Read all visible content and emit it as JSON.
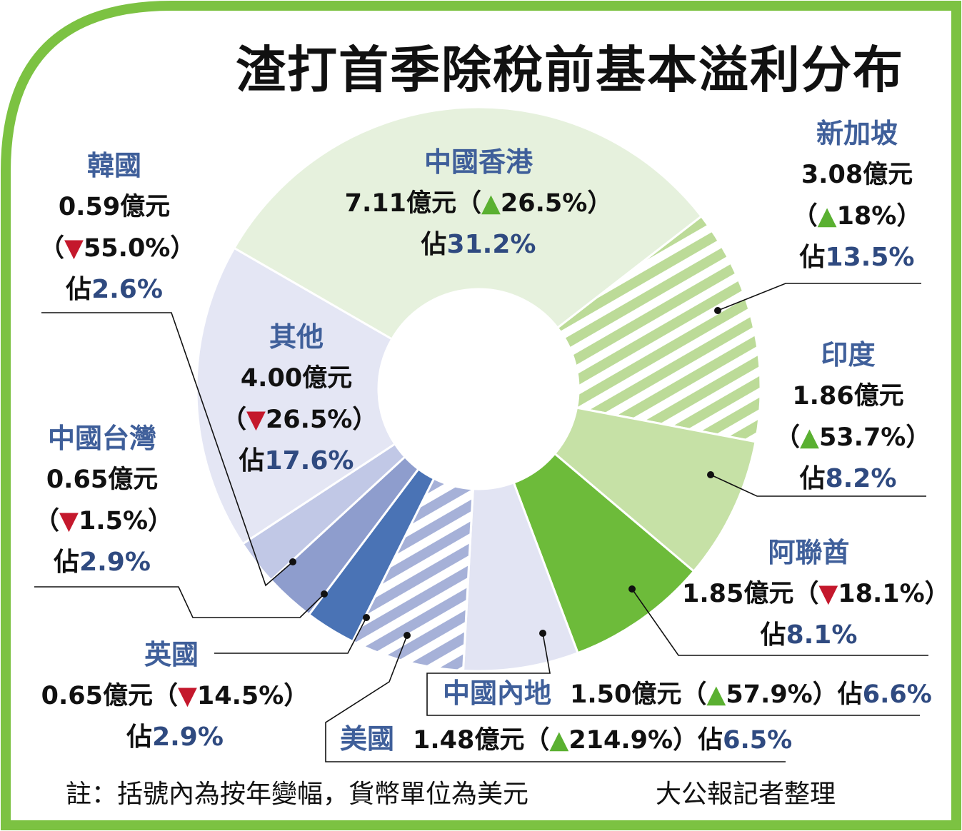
{
  "colors": {
    "border": "#7cc242",
    "hk": "#e6f1dd",
    "sg_stripe": "#bcdb98",
    "india": "#c6e1a6",
    "uae": "#6dbb3a",
    "mainland": "#e2e4f3",
    "us_stripe": "#a6b1d8",
    "uk": "#4a73b5",
    "taiwan": "#8e9dcd",
    "korea": "#c1c8e6",
    "others": "#e4e6f4"
  },
  "chart_data": {
    "type": "pie",
    "title": "渣打首季除稅前基本溢利分布",
    "unit": "億元",
    "slices": [
      {
        "key": "hk",
        "name": "中國香港",
        "value": 7.11,
        "change": "26.5%",
        "direction": "up",
        "share": "31.2%",
        "share_value": 31.2,
        "value_label": "7.11億元"
      },
      {
        "key": "sg",
        "name": "新加坡",
        "value": 3.08,
        "change": "18%",
        "direction": "up",
        "share": "13.5%",
        "share_value": 13.5,
        "value_label": "3.08億元"
      },
      {
        "key": "india",
        "name": "印度",
        "value": 1.86,
        "change": "53.7%",
        "direction": "up",
        "share": "8.2%",
        "share_value": 8.2,
        "value_label": "1.86億元"
      },
      {
        "key": "uae",
        "name": "阿聯酋",
        "value": 1.85,
        "change": "18.1%",
        "direction": "down",
        "share": "8.1%",
        "share_value": 8.1,
        "value_label": "1.85億元"
      },
      {
        "key": "mainland",
        "name": "中國內地",
        "value": 1.5,
        "change": "57.9%",
        "direction": "up",
        "share": "6.6%",
        "share_value": 6.6,
        "value_label": "1.50億元"
      },
      {
        "key": "us",
        "name": "美國",
        "value": 1.48,
        "change": "214.9%",
        "direction": "up",
        "share": "6.5%",
        "share_value": 6.5,
        "value_label": "1.48億元"
      },
      {
        "key": "uk",
        "name": "英國",
        "value": 0.65,
        "change": "14.5%",
        "direction": "down",
        "share": "2.9%",
        "share_value": 2.9,
        "value_label": "0.65億元"
      },
      {
        "key": "taiwan",
        "name": "中國台灣",
        "value": 0.65,
        "change": "1.5%",
        "direction": "down",
        "share": "2.9%",
        "share_value": 2.9,
        "value_label": "0.65億元"
      },
      {
        "key": "korea",
        "name": "韓國",
        "value": 0.59,
        "change": "55.0%",
        "direction": "down",
        "share": "2.6%",
        "share_value": 2.6,
        "value_label": "0.59億元"
      },
      {
        "key": "others",
        "name": "其他",
        "value": 4.0,
        "change": "26.5%",
        "direction": "down",
        "share": "17.6%",
        "share_value": 17.6,
        "value_label": "4.00億元"
      }
    ]
  },
  "text": {
    "share_prefix": "佔",
    "paren_open": "（",
    "paren_close": "）",
    "up_arrow": "▲",
    "down_arrow": "▼",
    "note": "註：括號內為按年變幅，貨幣單位為美元",
    "credit": "大公報記者整理"
  }
}
